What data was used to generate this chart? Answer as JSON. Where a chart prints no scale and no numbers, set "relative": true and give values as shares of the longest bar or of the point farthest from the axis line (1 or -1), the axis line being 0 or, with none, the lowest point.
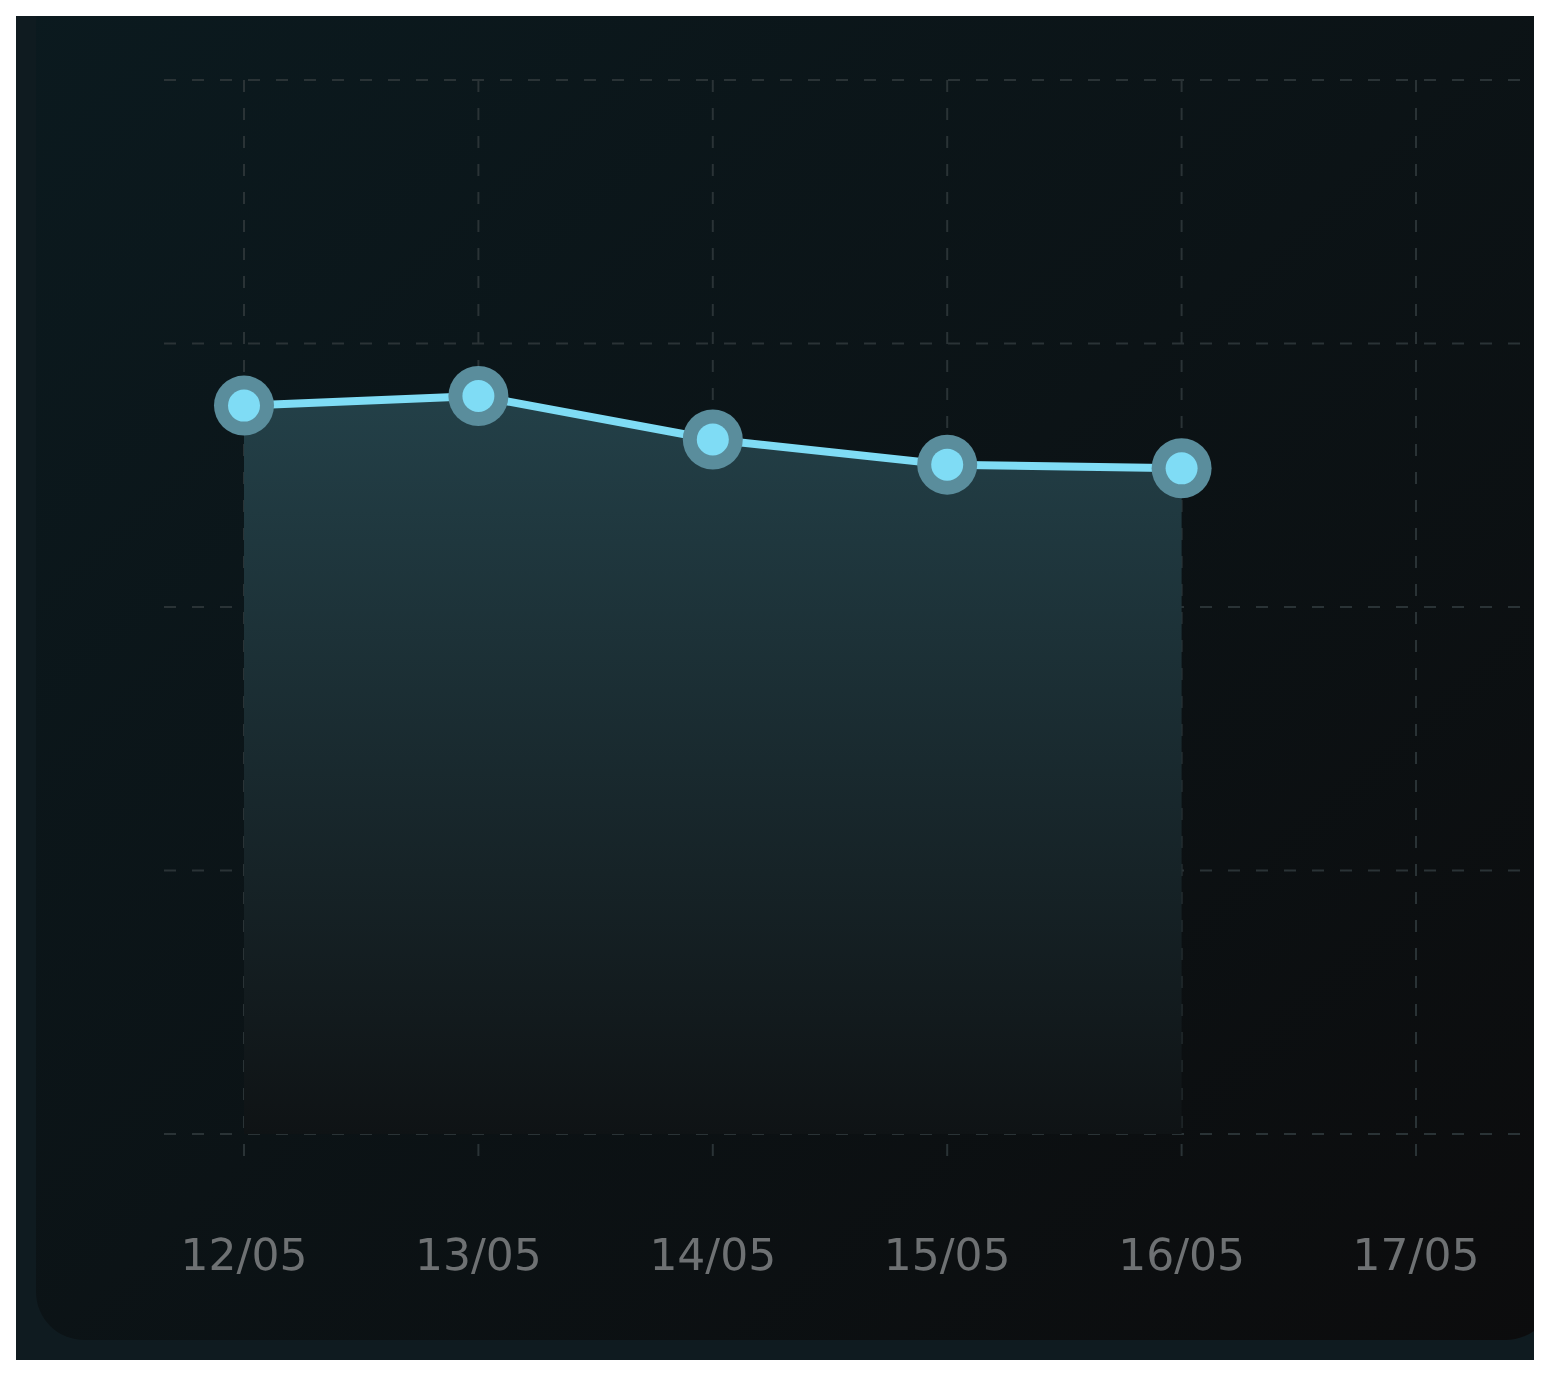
{
  "chart_data": {
    "type": "area",
    "categories": [
      "12/05",
      "13/05",
      "14/05",
      "15/05",
      "16/05",
      "17/05"
    ],
    "relative": true,
    "series": [
      {
        "color": "#7fdcf5",
        "values": [
          0.987,
          1,
          0.941,
          0.907,
          0.902,
          null
        ]
      }
    ],
    "marker": "circle",
    "grid": true
  }
}
